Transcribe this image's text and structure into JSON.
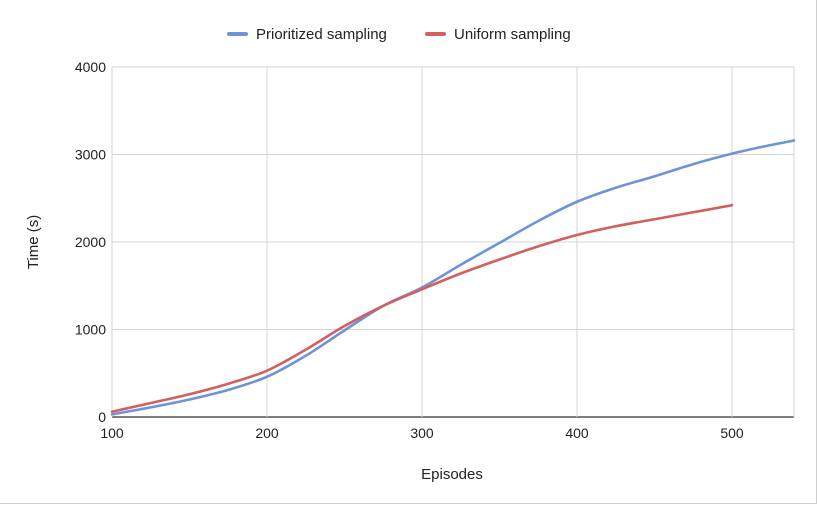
{
  "chart_data": {
    "type": "line",
    "title": "",
    "xlabel": "Episodes",
    "ylabel": "Time (s)",
    "xlim": [
      100,
      540
    ],
    "ylim": [
      0,
      4000
    ],
    "x_ticks": [
      "100",
      "200",
      "300",
      "400",
      "500"
    ],
    "y_ticks": [
      "0",
      "1000",
      "2000",
      "3000",
      "4000"
    ],
    "grid": true,
    "legend_position": "top-center",
    "series": [
      {
        "name": "Prioritized sampling",
        "color": "#6f93d9",
        "x": [
          100,
          125,
          150,
          175,
          200,
          225,
          250,
          275,
          300,
          325,
          350,
          375,
          400,
          425,
          450,
          475,
          500,
          520,
          540
        ],
        "y": [
          30,
          110,
          200,
          310,
          460,
          700,
          990,
          1270,
          1480,
          1740,
          1990,
          2240,
          2460,
          2620,
          2750,
          2890,
          3010,
          3090,
          3160
        ]
      },
      {
        "name": "Uniform sampling",
        "color": "#d35f5f",
        "x": [
          100,
          125,
          150,
          175,
          200,
          225,
          250,
          275,
          300,
          325,
          350,
          375,
          400,
          425,
          450,
          475,
          500
        ],
        "y": [
          60,
          160,
          260,
          380,
          530,
          770,
          1040,
          1270,
          1460,
          1640,
          1800,
          1950,
          2080,
          2180,
          2260,
          2340,
          2420
        ]
      }
    ]
  }
}
